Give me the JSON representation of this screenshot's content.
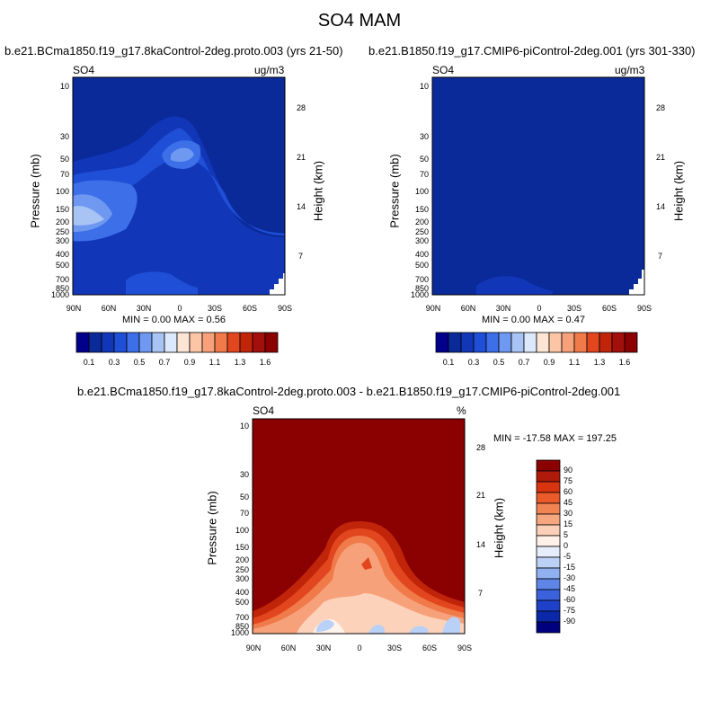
{
  "main_title": "SO4 MAM",
  "colors": {
    "background_deep_blue": "#0a2a9a",
    "outside_blue": "#0a2a9a",
    "diff_top": "#8b0000"
  },
  "panel_left": {
    "title": "b.e21.BCma1850.f19_g17.8kaControl-2deg.proto.003 (yrs 21-50)",
    "var": "SO4",
    "units": "ug/m3",
    "ylabel": "Pressure (mb)",
    "ylabel_right": "Height (km)",
    "minmax": "MIN =   0.00  MAX =   0.56",
    "colorbar_labels": [
      "0.1",
      "0.3",
      "0.5",
      "0.7",
      "0.9",
      "1.1",
      "1.3",
      "1.6"
    ]
  },
  "panel_right": {
    "title": "b.e21.B1850.f19_g17.CMIP6-piControl-2deg.001 (yrs 301-330)",
    "var": "SO4",
    "units": "ug/m3",
    "ylabel": "Pressure (mb)",
    "ylabel_right": "Height (km)",
    "minmax": "MIN =   0.00  MAX =   0.47",
    "colorbar_labels": [
      "0.1",
      "0.3",
      "0.5",
      "0.7",
      "0.9",
      "1.1",
      "1.3",
      "1.6"
    ]
  },
  "panel_diff": {
    "title": "b.e21.BCma1850.f19_g17.8kaControl-2deg.proto.003 - b.e21.B1850.f19_g17.CMIP6-piControl-2deg.001",
    "var": "SO4",
    "units": "%",
    "ylabel": "Pressure (mb)",
    "ylabel_right": "Height (km)",
    "minmax": "MIN = -17.58  MAX = 197.25",
    "colorbar_labels": [
      "90",
      "75",
      "60",
      "45",
      "30",
      "15",
      "5",
      "0",
      "-5",
      "-15",
      "-30",
      "-45",
      "-60",
      "-75",
      "-90"
    ]
  },
  "chart_data": [
    {
      "type": "heatmap",
      "title": "b.e21.BCma1850.f19_g17.8kaControl-2deg.proto.003 (yrs 21-50)",
      "xlabel": "",
      "ylabel": "Pressure (mb)",
      "x_ticks": [
        "90N",
        "60N",
        "30N",
        "0",
        "30S",
        "60S",
        "90S"
      ],
      "y_ticks": [
        10,
        30,
        50,
        70,
        100,
        150,
        200,
        250,
        300,
        400,
        500,
        700,
        850,
        1000
      ],
      "y_right_ticks_km": [
        28,
        21,
        14,
        7
      ],
      "y_scale": "log",
      "contour_levels": [
        0.1,
        0.2,
        0.3,
        0.4,
        0.5,
        0.6,
        0.7,
        0.8,
        0.9,
        1.0,
        1.1,
        1.2,
        1.3,
        1.4,
        1.6
      ],
      "min": 0.0,
      "max": 0.56
    },
    {
      "type": "heatmap",
      "title": "b.e21.B1850.f19_g17.CMIP6-piControl-2deg.001 (yrs 301-330)",
      "xlabel": "",
      "ylabel": "Pressure (mb)",
      "x_ticks": [
        "90N",
        "60N",
        "30N",
        "0",
        "30S",
        "60S",
        "90S"
      ],
      "y_ticks": [
        10,
        30,
        50,
        70,
        100,
        150,
        200,
        250,
        300,
        400,
        500,
        700,
        850,
        1000
      ],
      "y_right_ticks_km": [
        28,
        21,
        14,
        7
      ],
      "y_scale": "log",
      "contour_levels": [
        0.1,
        0.2,
        0.3,
        0.4,
        0.5,
        0.6,
        0.7,
        0.8,
        0.9,
        1.0,
        1.1,
        1.2,
        1.3,
        1.4,
        1.6
      ],
      "min": 0.0,
      "max": 0.47
    },
    {
      "type": "heatmap",
      "title": "b.e21.BCma1850.f19_g17.8kaControl-2deg.proto.003 - b.e21.B1850.f19_g17.CMIP6-piControl-2deg.001",
      "xlabel": "",
      "ylabel": "Pressure (mb)",
      "x_ticks": [
        "90N",
        "60N",
        "30N",
        "0",
        "30S",
        "60S",
        "90S"
      ],
      "y_ticks": [
        10,
        30,
        50,
        70,
        100,
        150,
        200,
        250,
        300,
        400,
        500,
        700,
        850,
        1000
      ],
      "y_right_ticks_km": [
        28,
        21,
        14,
        7
      ],
      "y_scale": "log",
      "contour_levels": [
        -90,
        -75,
        -60,
        -45,
        -30,
        -15,
        -5,
        0,
        5,
        15,
        30,
        45,
        60,
        75,
        90
      ],
      "min": -17.58,
      "max": 197.25
    }
  ]
}
